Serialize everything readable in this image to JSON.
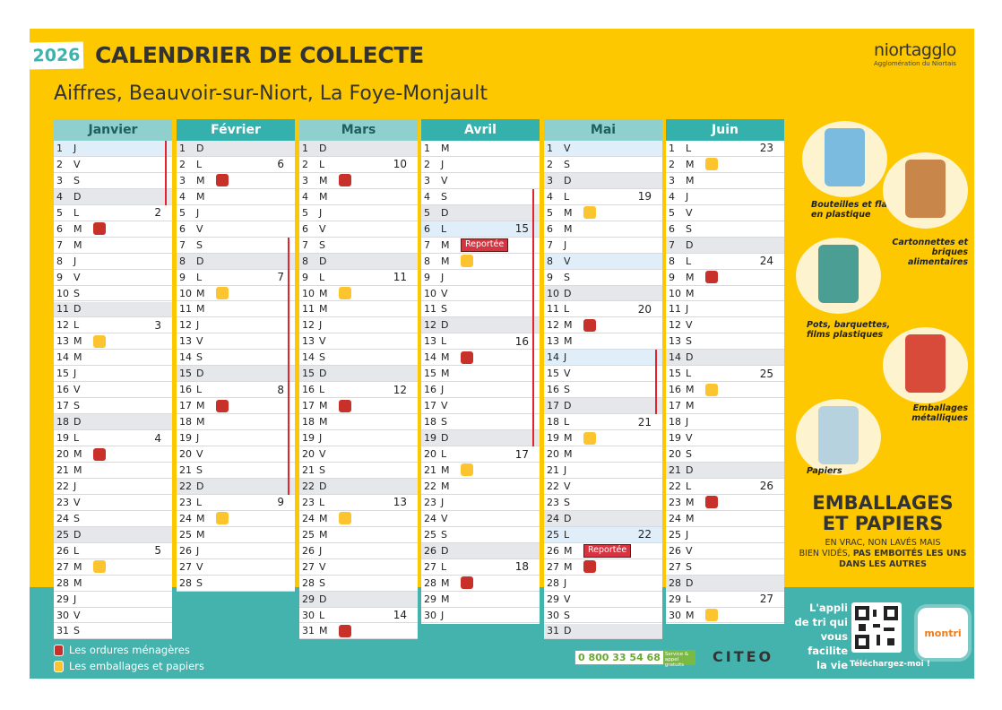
{
  "header": {
    "year": "2026",
    "title": "CALENDRIER DE COLLECTE",
    "communes": "Aiffres, Beauvoir-sur-Niort, La Foye-Monjault",
    "logo_main": "niortagglo",
    "logo_sub": "Agglomération du Niortais"
  },
  "colors": {
    "ordures": "#c8302a",
    "emballages": "#fcc42f",
    "background": "#fdc800",
    "band": "#44b3ad",
    "header_light": "#8fd0cf",
    "header_dark": "#34b1ac",
    "vacances": "#e3232e"
  },
  "reportee_label": "Reportée",
  "months": [
    {
      "name": "Janvier",
      "style": "light",
      "days": [
        "J",
        "V",
        "S",
        "D",
        "L",
        "M",
        "M",
        "J",
        "V",
        "S",
        "D",
        "L",
        "M",
        "M",
        "J",
        "V",
        "S",
        "D",
        "L",
        "M",
        "M",
        "J",
        "V",
        "S",
        "D",
        "L",
        "M",
        "M",
        "J",
        "V",
        "S"
      ],
      "weeks": {
        "5": "2",
        "12": "3",
        "19": "4",
        "26": "5"
      },
      "ordures": [
        6,
        20
      ],
      "emballages": [
        13,
        27
      ],
      "holidays": [
        1
      ],
      "reportee": [],
      "vacances": [
        1,
        4
      ]
    },
    {
      "name": "Février",
      "style": "dark",
      "days": [
        "D",
        "L",
        "M",
        "M",
        "J",
        "V",
        "S",
        "D",
        "L",
        "M",
        "M",
        "J",
        "V",
        "S",
        "D",
        "L",
        "M",
        "M",
        "J",
        "V",
        "S",
        "D",
        "L",
        "M",
        "M",
        "J",
        "V",
        "S"
      ],
      "weeks": {
        "2": "6",
        "9": "7",
        "16": "8",
        "23": "9"
      },
      "ordures": [
        3,
        17
      ],
      "emballages": [
        10,
        24
      ],
      "holidays": [],
      "reportee": [],
      "vacances": [
        7,
        22
      ]
    },
    {
      "name": "Mars",
      "style": "light",
      "days": [
        "D",
        "L",
        "M",
        "M",
        "J",
        "V",
        "S",
        "D",
        "L",
        "M",
        "M",
        "J",
        "V",
        "S",
        "D",
        "L",
        "M",
        "M",
        "J",
        "V",
        "S",
        "D",
        "L",
        "M",
        "M",
        "J",
        "V",
        "S",
        "D",
        "L",
        "M"
      ],
      "weeks": {
        "2": "10",
        "9": "11",
        "16": "12",
        "23": "13",
        "30": "14"
      },
      "ordures": [
        3,
        17,
        31
      ],
      "emballages": [
        10,
        24
      ],
      "holidays": [],
      "reportee": [],
      "vacances": null
    },
    {
      "name": "Avril",
      "style": "dark",
      "days": [
        "M",
        "J",
        "V",
        "S",
        "D",
        "L",
        "M",
        "M",
        "J",
        "V",
        "S",
        "D",
        "L",
        "M",
        "M",
        "J",
        "V",
        "S",
        "D",
        "L",
        "M",
        "M",
        "J",
        "V",
        "S",
        "D",
        "L",
        "M",
        "M",
        "J"
      ],
      "weeks": {
        "6": "15",
        "13": "16",
        "20": "17",
        "27": "18"
      },
      "ordures": [
        14,
        28
      ],
      "emballages": [
        8,
        21
      ],
      "holidays": [
        6
      ],
      "reportee": [
        7
      ],
      "vacances": [
        4,
        19
      ]
    },
    {
      "name": "Mai",
      "style": "light",
      "days": [
        "V",
        "S",
        "D",
        "L",
        "M",
        "M",
        "J",
        "V",
        "S",
        "D",
        "L",
        "M",
        "M",
        "J",
        "V",
        "S",
        "D",
        "L",
        "M",
        "M",
        "J",
        "V",
        "S",
        "D",
        "L",
        "M",
        "M",
        "J",
        "V",
        "S",
        "D"
      ],
      "weeks": {
        "4": "19",
        "11": "20",
        "18": "21",
        "25": "22"
      },
      "ordures": [
        12,
        27
      ],
      "emballages": [
        5,
        19
      ],
      "holidays": [
        1,
        8,
        14,
        25
      ],
      "reportee": [
        26
      ],
      "vacances": [
        14,
        17
      ]
    },
    {
      "name": "Juin",
      "style": "dark",
      "days": [
        "L",
        "M",
        "M",
        "J",
        "V",
        "S",
        "D",
        "L",
        "M",
        "M",
        "J",
        "V",
        "S",
        "D",
        "L",
        "M",
        "M",
        "J",
        "V",
        "S",
        "D",
        "L",
        "M",
        "M",
        "J",
        "V",
        "S",
        "D",
        "L",
        "M"
      ],
      "weeks": {
        "1": "23",
        "8": "24",
        "15": "25",
        "22": "26",
        "29": "27"
      },
      "ordures": [
        9,
        23
      ],
      "emballages": [
        2,
        16,
        30
      ],
      "holidays": [],
      "reportee": [],
      "vacances": null
    }
  ],
  "legend": {
    "ordures": "Les ordures ménagères",
    "emballages": "Les emballages et papiers"
  },
  "categories": [
    {
      "label": "Bouteilles et flacons en plastique",
      "icon": "bottles-icon"
    },
    {
      "label": "Cartonnettes et briques alimentaires",
      "icon": "cartons-icon"
    },
    {
      "label": "Pots, barquettes, films plastiques",
      "icon": "pots-icon"
    },
    {
      "label": "Emballages métalliques",
      "icon": "cans-icon"
    },
    {
      "label": "Papiers",
      "icon": "papers-icon"
    }
  ],
  "emballages_box": {
    "title1": "EMBALLAGES",
    "title2": "ET PAPIERS",
    "line1": "EN VRAC, NON LAVÉS MAIS",
    "line2": "BIEN VIDÉS, ",
    "line2_bold": "PAS EMBOITÉS LES UNS DANS LES AUTRES"
  },
  "app": {
    "text": "L'appli de tri qui vous facilite la vie",
    "download": "Téléchargez-moi !",
    "name": "montri"
  },
  "contact": {
    "phone": "0 800 33 54 68",
    "phone_tag": "Service & appel gratuits",
    "partner": "CITEO"
  }
}
